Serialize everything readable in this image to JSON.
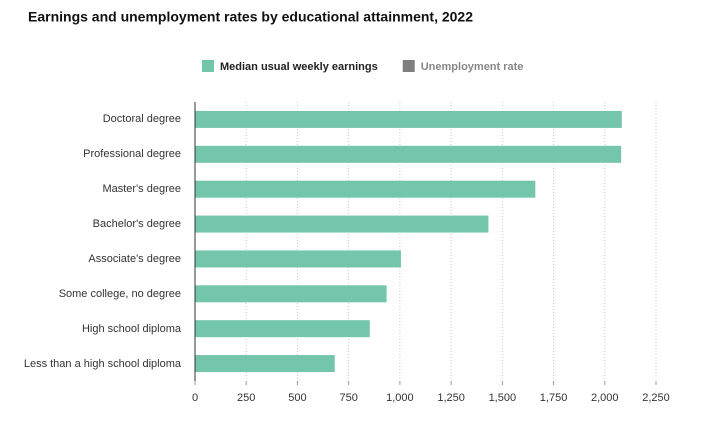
{
  "chart_data": {
    "type": "hbar",
    "title": "Earnings and unemployment rates by educational attainment, 2022",
    "categories": [
      "Doctoral degree",
      "Professional degree",
      "Master's degree",
      "Bachelor's degree",
      "Associate's degree",
      "Some college, no degree",
      "High school diploma",
      "Less than a high school diploma"
    ],
    "series": [
      {
        "name": "Median usual weekly earnings",
        "color": "#73c5ab",
        "values": [
          2083,
          2080,
          1661,
          1432,
          1005,
          935,
          853,
          682
        ]
      }
    ],
    "hidden_series": [
      {
        "name": "Unemployment rate",
        "color": "#7f7f7f"
      }
    ],
    "xlim": [
      0,
      2250
    ],
    "xticks": [
      0,
      250,
      500,
      750,
      {
        "value": 1000,
        "label": "1,000"
      },
      {
        "value": 1250,
        "label": "1,250"
      },
      {
        "value": 1500,
        "label": "1,500"
      },
      {
        "value": 1750,
        "label": "1,750"
      },
      {
        "value": 2000,
        "label": "2,000"
      },
      {
        "value": 2250,
        "label": "2,250"
      }
    ],
    "grid": true
  }
}
